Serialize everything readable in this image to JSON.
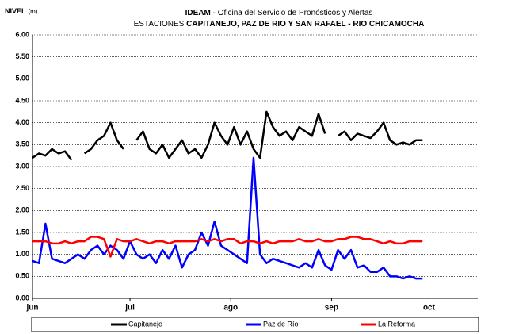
{
  "chart_data": {
    "type": "line",
    "title_bold": "IDEAM -",
    "title_rest": " Oficina del Servicio de Pronósticos y Alertas",
    "subtitle_lead": "ESTACIONES ",
    "subtitle_bold": "CAPITANEJO, PAZ DE RIO Y SAN RAFAEL -  RIO CHICAMOCHA",
    "y_label": "NIVEL",
    "y_unit": "(m)",
    "x": [
      0,
      2,
      4,
      6,
      8,
      10,
      12,
      14,
      16,
      18,
      20,
      22,
      24,
      26,
      28,
      30,
      32,
      34,
      36,
      38,
      40,
      42,
      44,
      46,
      48,
      50,
      52,
      54,
      56,
      58,
      60,
      62,
      64,
      66,
      68,
      70,
      72,
      74,
      76,
      78,
      80,
      82,
      84,
      86,
      88,
      90,
      92,
      94,
      96,
      98,
      100,
      102,
      104,
      106,
      108,
      110,
      112,
      114,
      116,
      118,
      120
    ],
    "xlim": [
      0,
      137
    ],
    "xticks": [
      {
        "value": 0,
        "label": "jun"
      },
      {
        "value": 30,
        "label": "jul"
      },
      {
        "value": 61,
        "label": "ago"
      },
      {
        "value": 92,
        "label": "sep"
      },
      {
        "value": 122,
        "label": "oct"
      }
    ],
    "ylim": [
      0,
      6
    ],
    "yticks": [
      {
        "value": 0,
        "label": "0.00"
      },
      {
        "value": 0.5,
        "label": "0.50"
      },
      {
        "value": 1,
        "label": "1.00"
      },
      {
        "value": 1.5,
        "label": "1.50"
      },
      {
        "value": 2,
        "label": "2.00"
      },
      {
        "value": 2.5,
        "label": "2.50"
      },
      {
        "value": 3,
        "label": "3.00"
      },
      {
        "value": 3.5,
        "label": "3.50"
      },
      {
        "value": 4,
        "label": "4.00"
      },
      {
        "value": 4.5,
        "label": "4.50"
      },
      {
        "value": 5,
        "label": "5.00"
      },
      {
        "value": 5.5,
        "label": "5.50"
      },
      {
        "value": 6,
        "label": "6.00"
      }
    ],
    "grid": true,
    "legend": "bottom",
    "series": [
      {
        "name": "Capitanejo",
        "color": "#000000",
        "values": [
          3.2,
          3.3,
          3.25,
          3.4,
          3.3,
          3.35,
          3.15,
          null,
          3.3,
          3.4,
          3.6,
          3.7,
          4.0,
          3.6,
          3.4,
          null,
          3.6,
          3.8,
          3.4,
          3.3,
          3.5,
          3.2,
          3.4,
          3.6,
          3.3,
          3.4,
          3.2,
          3.5,
          4.0,
          3.7,
          3.5,
          3.9,
          3.5,
          3.8,
          3.4,
          3.2,
          4.25,
          3.9,
          3.7,
          3.8,
          3.6,
          3.9,
          3.8,
          3.7,
          4.2,
          3.75,
          null,
          3.7,
          3.8,
          3.6,
          3.75,
          3.7,
          3.65,
          3.8,
          4.0,
          3.6,
          3.5,
          3.55,
          3.5,
          3.6,
          3.6
        ]
      },
      {
        "name": "Paz de Río",
        "color": "#0000ff",
        "values": [
          0.85,
          0.8,
          1.7,
          0.9,
          0.85,
          0.8,
          0.9,
          1.0,
          0.9,
          1.1,
          1.2,
          1.0,
          1.2,
          1.1,
          0.9,
          1.3,
          1.0,
          0.9,
          1.0,
          0.8,
          1.1,
          0.9,
          1.2,
          0.7,
          1.0,
          1.1,
          1.5,
          1.2,
          1.75,
          1.2,
          1.1,
          1.0,
          0.9,
          0.8,
          3.2,
          1.0,
          0.8,
          0.9,
          0.85,
          0.8,
          0.75,
          0.7,
          0.8,
          0.7,
          1.1,
          0.75,
          0.65,
          1.1,
          0.9,
          1.1,
          0.7,
          0.75,
          0.6,
          0.6,
          0.7,
          0.5,
          0.5,
          0.45,
          0.5,
          0.45,
          0.45
        ]
      },
      {
        "name": "La Reforma",
        "color": "#ff0000",
        "values": [
          1.3,
          1.3,
          1.3,
          1.25,
          1.25,
          1.3,
          1.25,
          1.3,
          1.3,
          1.4,
          1.4,
          1.35,
          0.95,
          1.35,
          1.3,
          1.3,
          1.35,
          1.3,
          1.25,
          1.3,
          1.3,
          1.25,
          1.3,
          1.3,
          1.3,
          1.3,
          1.35,
          1.3,
          1.35,
          1.3,
          1.35,
          1.35,
          1.25,
          1.3,
          1.3,
          1.25,
          1.3,
          1.25,
          1.3,
          1.3,
          1.3,
          1.35,
          1.3,
          1.3,
          1.35,
          1.3,
          1.3,
          1.35,
          1.35,
          1.4,
          1.4,
          1.35,
          1.35,
          1.3,
          1.25,
          1.3,
          1.25,
          1.25,
          1.3,
          1.3,
          1.3
        ]
      }
    ]
  }
}
